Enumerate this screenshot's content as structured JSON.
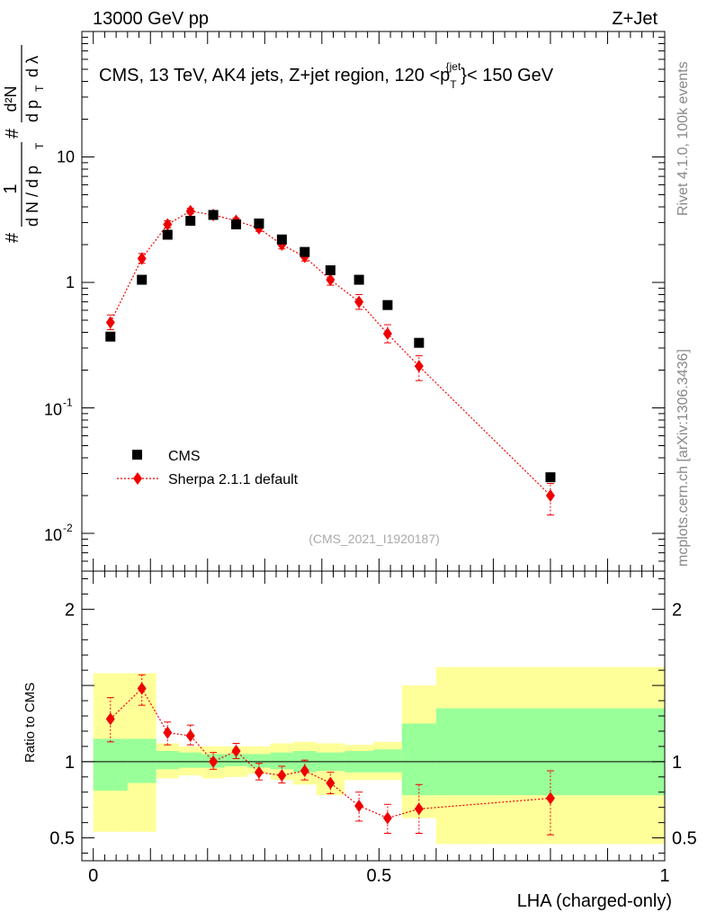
{
  "header": {
    "left": "13000 GeV pp",
    "right": "Z+Jet"
  },
  "right_side": {
    "upper": "Rivet 4.1.0,  100k events",
    "lower": "mcplots.cern.ch [arXiv:1306.3436]"
  },
  "chart_data": [
    {
      "type": "scatter",
      "panel": "main",
      "yscale": "log",
      "title": "CMS, 13 TeV, AK4 jets, Z+jet region, 120 <p",
      "title_sub": "T",
      "title_sup": "{jet",
      "title_tail": "}< 150 GeV",
      "ylabel": "(1/(dN/dpT)) d²N/(dpT dλ)",
      "ylabel_parts": {
        "hash1": "#",
        "one": "1",
        "denom_dN": "d N / d p",
        "sub_T": "T",
        "hash2": "#",
        "numer": "d²N",
        "denom2": "d p",
        "dlambda": "d λ"
      },
      "ylim": [
        0.005,
        100
      ],
      "yticks": [
        {
          "value": 0.01,
          "base": "10",
          "exp": "-2"
        },
        {
          "value": 0.1,
          "base": "10",
          "exp": "-1"
        },
        {
          "value": 1,
          "label": "1"
        },
        {
          "value": 10,
          "label": "10"
        }
      ],
      "xlim": [
        -0.02,
        1.0
      ],
      "watermark": "(CMS_2021_I1920187)",
      "legend": [
        "CMS",
        "Sherpa 2.1.1 default"
      ],
      "series": [
        {
          "name": "CMS",
          "x": [
            0.03,
            0.085,
            0.13,
            0.17,
            0.21,
            0.25,
            0.29,
            0.33,
            0.37,
            0.415,
            0.465,
            0.515,
            0.57,
            0.8
          ],
          "y": [
            0.37,
            1.05,
            2.4,
            3.1,
            3.45,
            2.9,
            2.95,
            2.2,
            1.75,
            1.25,
            1.05,
            0.66,
            0.33,
            0.028
          ]
        },
        {
          "name": "Sherpa 2.1.1 default",
          "x": [
            0.03,
            0.085,
            0.13,
            0.17,
            0.21,
            0.25,
            0.29,
            0.33,
            0.37,
            0.415,
            0.465,
            0.515,
            0.57,
            0.8
          ],
          "y": [
            0.48,
            1.55,
            2.9,
            3.7,
            3.45,
            3.1,
            2.7,
            2.0,
            1.6,
            1.05,
            0.7,
            0.39,
            0.215,
            0.02
          ],
          "yerr_lo": [
            0.42,
            1.42,
            2.72,
            3.52,
            3.3,
            2.95,
            2.55,
            1.85,
            1.48,
            0.95,
            0.61,
            0.33,
            0.165,
            0.014
          ],
          "yerr_hi": [
            0.55,
            1.7,
            3.1,
            3.9,
            3.6,
            3.25,
            2.85,
            2.15,
            1.72,
            1.15,
            0.8,
            0.46,
            0.26,
            0.025
          ]
        }
      ]
    },
    {
      "type": "ratio",
      "panel": "ratio",
      "ylabel": "Ratio to CMS",
      "xlabel": "LHA (charged-only)",
      "ylim": [
        0.35,
        2.25
      ],
      "yticks": [
        {
          "value": 0.5,
          "label": "0.5"
        },
        {
          "value": 1,
          "label": "1"
        },
        {
          "value": 2,
          "label": "2"
        }
      ],
      "xticks": [
        {
          "value": 0,
          "label": "0"
        },
        {
          "value": 0.5,
          "label": "0.5"
        },
        {
          "value": 1,
          "label": "1"
        }
      ],
      "xlim": [
        -0.02,
        1.0
      ],
      "colors": {
        "yellow": "#ffff99",
        "green": "#99ff99",
        "sherpa": "#ee0000"
      },
      "bands": [
        {
          "x0": 0.0,
          "x1": 0.06,
          "g_lo": 0.81,
          "g_hi": 1.15,
          "y_lo": 0.54,
          "y_hi": 1.58
        },
        {
          "x0": 0.06,
          "x1": 0.11,
          "g_lo": 0.86,
          "g_hi": 1.14,
          "y_lo": 0.54,
          "y_hi": 1.58
        },
        {
          "x0": 0.06,
          "x1": 0.11,
          "g_lo": 0.91,
          "g_hi": 1.15,
          "y_lo": 0.81,
          "y_hi": 1.28
        },
        {
          "x0": 0.11,
          "x1": 0.15,
          "g_lo": 0.95,
          "g_hi": 1.07,
          "y_lo": 0.89,
          "y_hi": 1.12
        },
        {
          "x0": 0.15,
          "x1": 0.19,
          "g_lo": 0.96,
          "g_hi": 1.06,
          "y_lo": 0.91,
          "y_hi": 1.1
        },
        {
          "x0": 0.19,
          "x1": 0.23,
          "g_lo": 0.96,
          "g_hi": 1.05,
          "y_lo": 0.89,
          "y_hi": 1.1
        },
        {
          "x0": 0.23,
          "x1": 0.27,
          "g_lo": 0.97,
          "g_hi": 1.05,
          "y_lo": 0.9,
          "y_hi": 1.1
        },
        {
          "x0": 0.27,
          "x1": 0.31,
          "g_lo": 0.96,
          "g_hi": 1.05,
          "y_lo": 0.92,
          "y_hi": 1.1
        },
        {
          "x0": 0.31,
          "x1": 0.35,
          "g_lo": 0.95,
          "g_hi": 1.06,
          "y_lo": 0.88,
          "y_hi": 1.12
        },
        {
          "x0": 0.35,
          "x1": 0.39,
          "g_lo": 0.93,
          "g_hi": 1.07,
          "y_lo": 0.85,
          "y_hi": 1.13
        },
        {
          "x0": 0.39,
          "x1": 0.44,
          "g_lo": 0.94,
          "g_hi": 1.06,
          "y_lo": 0.78,
          "y_hi": 1.12
        },
        {
          "x0": 0.44,
          "x1": 0.49,
          "g_lo": 0.93,
          "g_hi": 1.07,
          "y_lo": 0.88,
          "y_hi": 1.11
        },
        {
          "x0": 0.49,
          "x1": 0.54,
          "g_lo": 0.93,
          "g_hi": 1.08,
          "y_lo": 0.88,
          "y_hi": 1.13
        },
        {
          "x0": 0.54,
          "x1": 0.6,
          "g_lo": 0.78,
          "g_hi": 1.25,
          "y_lo": 0.63,
          "y_hi": 1.5
        },
        {
          "x0": 0.6,
          "x1": 1.0,
          "g_lo": 0.78,
          "g_hi": 1.35,
          "y_lo": 0.46,
          "y_hi": 1.62
        }
      ],
      "series": [
        {
          "name": "Sherpa 2.1.1 default",
          "x": [
            0.03,
            0.085,
            0.13,
            0.17,
            0.21,
            0.25,
            0.29,
            0.33,
            0.37,
            0.415,
            0.465,
            0.515,
            0.57,
            0.8
          ],
          "y": [
            1.28,
            1.48,
            1.19,
            1.17,
            1.0,
            1.07,
            0.93,
            0.91,
            0.94,
            0.86,
            0.71,
            0.63,
            0.69,
            0.76
          ],
          "yerr_lo": [
            1.13,
            1.37,
            1.11,
            1.11,
            0.95,
            1.02,
            0.88,
            0.86,
            0.88,
            0.79,
            0.61,
            0.53,
            0.53,
            0.52
          ],
          "yerr_hi": [
            1.42,
            1.57,
            1.26,
            1.24,
            1.06,
            1.12,
            0.99,
            0.97,
            1.01,
            0.93,
            0.8,
            0.72,
            0.85,
            0.94
          ]
        }
      ]
    }
  ]
}
